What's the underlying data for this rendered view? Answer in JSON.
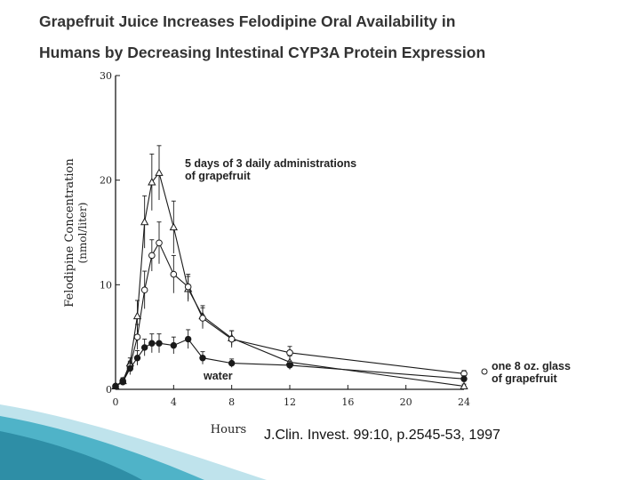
{
  "title_line1": "Grapefruit Juice Increases Felodipine Oral Availability in",
  "title_line2": "Humans by Decreasing Intestinal CYP3A Protein Expression",
  "citation": "J.Clin. Invest. 99:10, p.2545-53, 1997",
  "colors": {
    "accent_teal": "#4fb3c8",
    "light_teal": "#bfe3ec",
    "ink": "#1a1a1a"
  },
  "chart_data": {
    "type": "line",
    "title": "",
    "xlabel": "Hours",
    "ylabel_line1": "Felodipine Concentration",
    "ylabel_line2": "(nmol/liter)",
    "xlim": [
      0,
      24
    ],
    "ylim": [
      0,
      30
    ],
    "x_ticks": [
      0,
      4,
      8,
      12,
      16,
      20,
      24
    ],
    "x_tick_labels": [
      "0",
      "4",
      "8",
      "12",
      "16",
      "20",
      "24"
    ],
    "y_ticks": [
      0,
      10,
      20,
      30
    ],
    "y_tick_labels": [
      "0",
      "10",
      "20",
      "30"
    ],
    "annotations": {
      "five_days": [
        "5 days of 3 daily administrations",
        "of grapefruit"
      ],
      "one_glass": [
        "one 8 oz. glass",
        "of grapefruit"
      ],
      "water": "water"
    },
    "series": [
      {
        "key": "five_days",
        "marker": "triangle",
        "x": [
          0,
          0.5,
          1,
          1.5,
          2,
          2.5,
          3,
          4,
          5,
          6,
          8,
          12,
          24
        ],
        "y": [
          0.3,
          0.8,
          2.5,
          7,
          16,
          19.8,
          20.7,
          15.5,
          9.6,
          7,
          4.9,
          2.6,
          0.3
        ],
        "err": [
          0.2,
          0.3,
          0.5,
          1.5,
          2.5,
          2.7,
          2.6,
          2.5,
          1.2,
          1,
          0.7,
          0.6,
          0.2
        ]
      },
      {
        "key": "one_glass",
        "marker": "circle-open",
        "x": [
          0,
          0.5,
          1,
          1.5,
          2,
          2.5,
          3,
          4,
          5,
          6,
          8,
          12,
          24
        ],
        "y": [
          0.3,
          0.8,
          2.2,
          5,
          9.5,
          12.8,
          14,
          11,
          9.8,
          6.8,
          4.8,
          3.5,
          1.5
        ],
        "err": [
          0.2,
          0.3,
          0.5,
          1.2,
          1.8,
          1.5,
          2,
          1.8,
          1.2,
          1,
          0.8,
          0.6,
          0.3
        ]
      },
      {
        "key": "water",
        "marker": "circle-filled",
        "x": [
          0,
          0.5,
          1,
          1.5,
          2,
          2.5,
          3,
          4,
          5,
          6,
          8,
          12,
          24
        ],
        "y": [
          0.3,
          0.7,
          2,
          3,
          4,
          4.4,
          4.4,
          4.2,
          4.8,
          3,
          2.5,
          2.3,
          1
        ],
        "err": [
          0.2,
          0.3,
          0.6,
          0.7,
          0.8,
          0.9,
          0.9,
          0.8,
          0.9,
          0.6,
          0.4,
          0.4,
          0.3
        ]
      }
    ]
  }
}
